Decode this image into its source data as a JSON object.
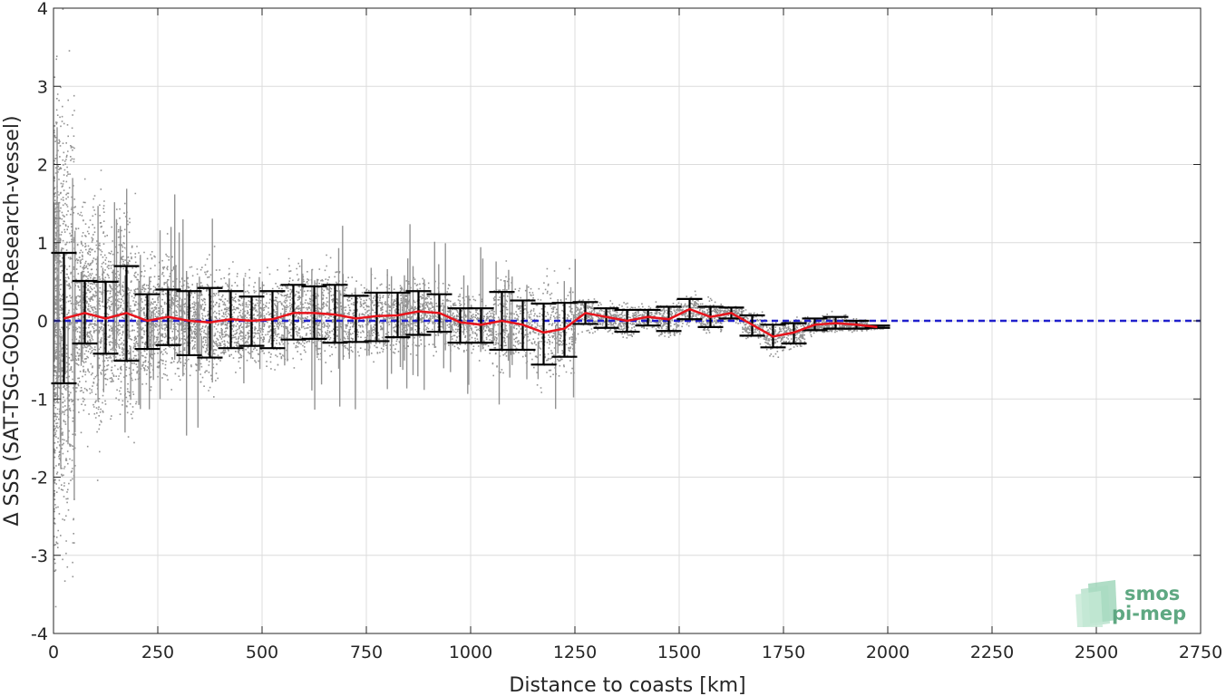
{
  "chart_data": {
    "type": "scatter",
    "xlabel": "Distance to coasts [km]",
    "ylabel": "Δ SSS (SAT-TSG-GOSUD-Research-vessel)",
    "xlim": [
      0,
      2750
    ],
    "ylim": [
      -4,
      4
    ],
    "xticks": [
      "0",
      "250",
      "500",
      "750",
      "1000",
      "1250",
      "1500",
      "1750",
      "2000",
      "2250",
      "2500",
      "2750"
    ],
    "yticks": [
      "-4",
      "-3",
      "-2",
      "-1",
      "0",
      "1",
      "2",
      "3",
      "4"
    ],
    "grid": true,
    "reference_line": {
      "y": 0,
      "color": "#1f1fcc",
      "style": "dashed"
    },
    "scatter_color": "#808080",
    "mean_color": "#e8141c",
    "errorbar_color": "#000000",
    "binned_stats": {
      "x": [
        25,
        75,
        125,
        175,
        225,
        275,
        325,
        375,
        425,
        475,
        525,
        575,
        625,
        675,
        725,
        775,
        825,
        875,
        925,
        975,
        1025,
        1075,
        1125,
        1175,
        1225,
        1275,
        1325,
        1375,
        1425,
        1475,
        1525,
        1575,
        1625,
        1675,
        1725,
        1775,
        1825,
        1875,
        1925,
        1975
      ],
      "mean": [
        0.03,
        0.1,
        0.03,
        0.1,
        0.0,
        0.05,
        0.0,
        -0.02,
        0.02,
        0.0,
        0.02,
        0.1,
        0.1,
        0.08,
        0.03,
        0.06,
        0.07,
        0.12,
        0.1,
        -0.02,
        -0.05,
        0.0,
        -0.05,
        -0.15,
        -0.1,
        0.1,
        0.05,
        0.0,
        0.05,
        0.02,
        0.15,
        0.05,
        0.1,
        -0.05,
        -0.2,
        -0.15,
        -0.05,
        -0.03,
        -0.05,
        -0.08
      ],
      "upper": [
        0.87,
        0.51,
        0.5,
        0.7,
        0.34,
        0.4,
        0.38,
        0.42,
        0.38,
        0.31,
        0.38,
        0.46,
        0.44,
        0.46,
        0.32,
        0.36,
        0.36,
        0.38,
        0.34,
        0.16,
        0.16,
        0.37,
        0.26,
        0.22,
        0.23,
        0.24,
        0.16,
        0.14,
        0.14,
        0.18,
        0.28,
        0.18,
        0.17,
        0.07,
        -0.05,
        -0.03,
        0.03,
        0.05,
        0.0,
        -0.06
      ],
      "lower": [
        -0.8,
        -0.29,
        -0.42,
        -0.51,
        -0.36,
        -0.31,
        -0.44,
        -0.47,
        -0.35,
        -0.32,
        -0.35,
        -0.24,
        -0.23,
        -0.28,
        -0.27,
        -0.26,
        -0.21,
        -0.18,
        -0.14,
        -0.28,
        -0.28,
        -0.37,
        -0.37,
        -0.56,
        -0.46,
        -0.04,
        -0.09,
        -0.14,
        -0.06,
        -0.13,
        0.02,
        -0.08,
        0.03,
        -0.19,
        -0.34,
        -0.29,
        -0.12,
        -0.1,
        -0.1,
        -0.09
      ]
    }
  },
  "logo": {
    "line1": "smos",
    "line2": "pi-mep",
    "text_color": "#5fa882",
    "shape_color": "#8fcfae"
  }
}
